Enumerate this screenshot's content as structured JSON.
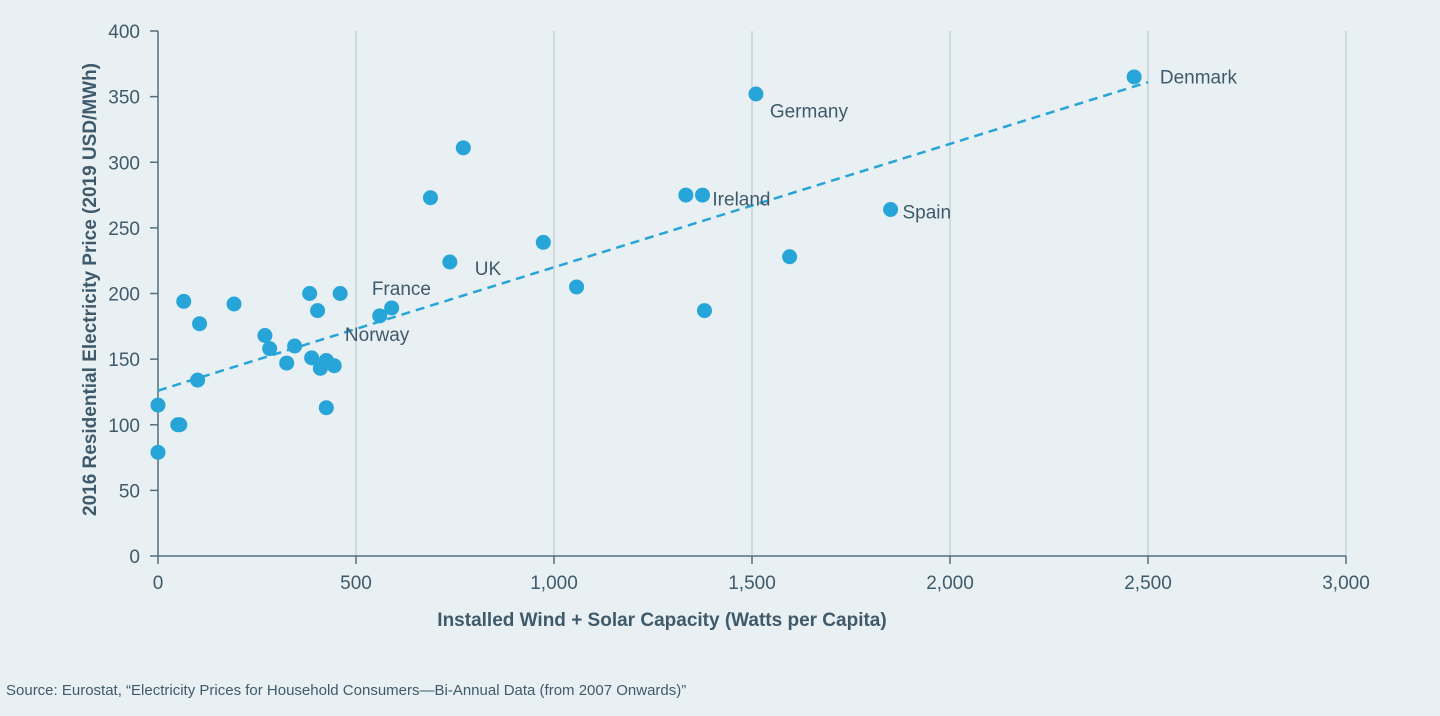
{
  "chart_data": {
    "type": "scatter",
    "xlabel": "Installed Wind + Solar Capacity (Watts per Capita)",
    "ylabel": "2016 Residential Electricity Price (2019 USD/MWh)",
    "xlim": [
      0,
      3000
    ],
    "ylim": [
      0,
      400
    ],
    "x_ticks": [
      {
        "value": 0,
        "label": "0"
      },
      {
        "value": 500,
        "label": "500"
      },
      {
        "value": 1000,
        "label": "1,000"
      },
      {
        "value": 1500,
        "label": "1,500"
      },
      {
        "value": 2000,
        "label": "2,000"
      },
      {
        "value": 2500,
        "label": "2,500"
      },
      {
        "value": 3000,
        "label": "3,000"
      }
    ],
    "y_ticks": [
      {
        "value": 0,
        "label": "0"
      },
      {
        "value": 50,
        "label": "50"
      },
      {
        "value": 100,
        "label": "100"
      },
      {
        "value": 150,
        "label": "150"
      },
      {
        "value": 200,
        "label": "200"
      },
      {
        "value": 250,
        "label": "250"
      },
      {
        "value": 300,
        "label": "300"
      },
      {
        "value": 350,
        "label": "350"
      },
      {
        "value": 400,
        "label": "400"
      }
    ],
    "grid": "vertical",
    "point_color": "#27a4d8",
    "trend_color": "#27a4d8",
    "trendline": {
      "x0": 0,
      "y0": 126,
      "x1": 2500,
      "y1": 361
    },
    "points": [
      {
        "x": 0,
        "y": 115
      },
      {
        "x": 0,
        "y": 79
      },
      {
        "x": 50,
        "y": 100
      },
      {
        "x": 55,
        "y": 100
      },
      {
        "x": 65,
        "y": 194
      },
      {
        "x": 100,
        "y": 134
      },
      {
        "x": 105,
        "y": 177
      },
      {
        "x": 192,
        "y": 192
      },
      {
        "x": 270,
        "y": 168
      },
      {
        "x": 282,
        "y": 158
      },
      {
        "x": 325,
        "y": 147
      },
      {
        "x": 345,
        "y": 160
      },
      {
        "x": 383,
        "y": 200
      },
      {
        "x": 388,
        "y": 151
      },
      {
        "x": 403,
        "y": 187
      },
      {
        "x": 410,
        "y": 143
      },
      {
        "x": 425,
        "y": 149
      },
      {
        "x": 425,
        "y": 113
      },
      {
        "x": 445,
        "y": 145
      },
      {
        "x": 460,
        "y": 200
      },
      {
        "x": 560,
        "y": 183
      },
      {
        "x": 590,
        "y": 189
      },
      {
        "x": 688,
        "y": 273
      },
      {
        "x": 737,
        "y": 224
      },
      {
        "x": 771,
        "y": 311
      },
      {
        "x": 973,
        "y": 239
      },
      {
        "x": 1057,
        "y": 205
      },
      {
        "x": 1333,
        "y": 275
      },
      {
        "x": 1375,
        "y": 275
      },
      {
        "x": 1380,
        "y": 187
      },
      {
        "x": 1510,
        "y": 352
      },
      {
        "x": 1595,
        "y": 228
      },
      {
        "x": 1850,
        "y": 264
      },
      {
        "x": 2465,
        "y": 365
      }
    ],
    "annotations": [
      {
        "text": "Denmark",
        "x": 2530,
        "y": 360
      },
      {
        "text": "Germany",
        "x": 1545,
        "y": 334
      },
      {
        "text": "Ireland",
        "x": 1400,
        "y": 267
      },
      {
        "text": "Spain",
        "x": 1880,
        "y": 257
      },
      {
        "text": "UK",
        "x": 800,
        "y": 214
      },
      {
        "text": "France",
        "x": 540,
        "y": 199
      },
      {
        "text": "Norway",
        "x": 472,
        "y": 164
      }
    ]
  },
  "source": "Source: Eurostat, “Electricity Prices for Household Consumers—Bi-Annual Data (from 2007 Onwards)”"
}
